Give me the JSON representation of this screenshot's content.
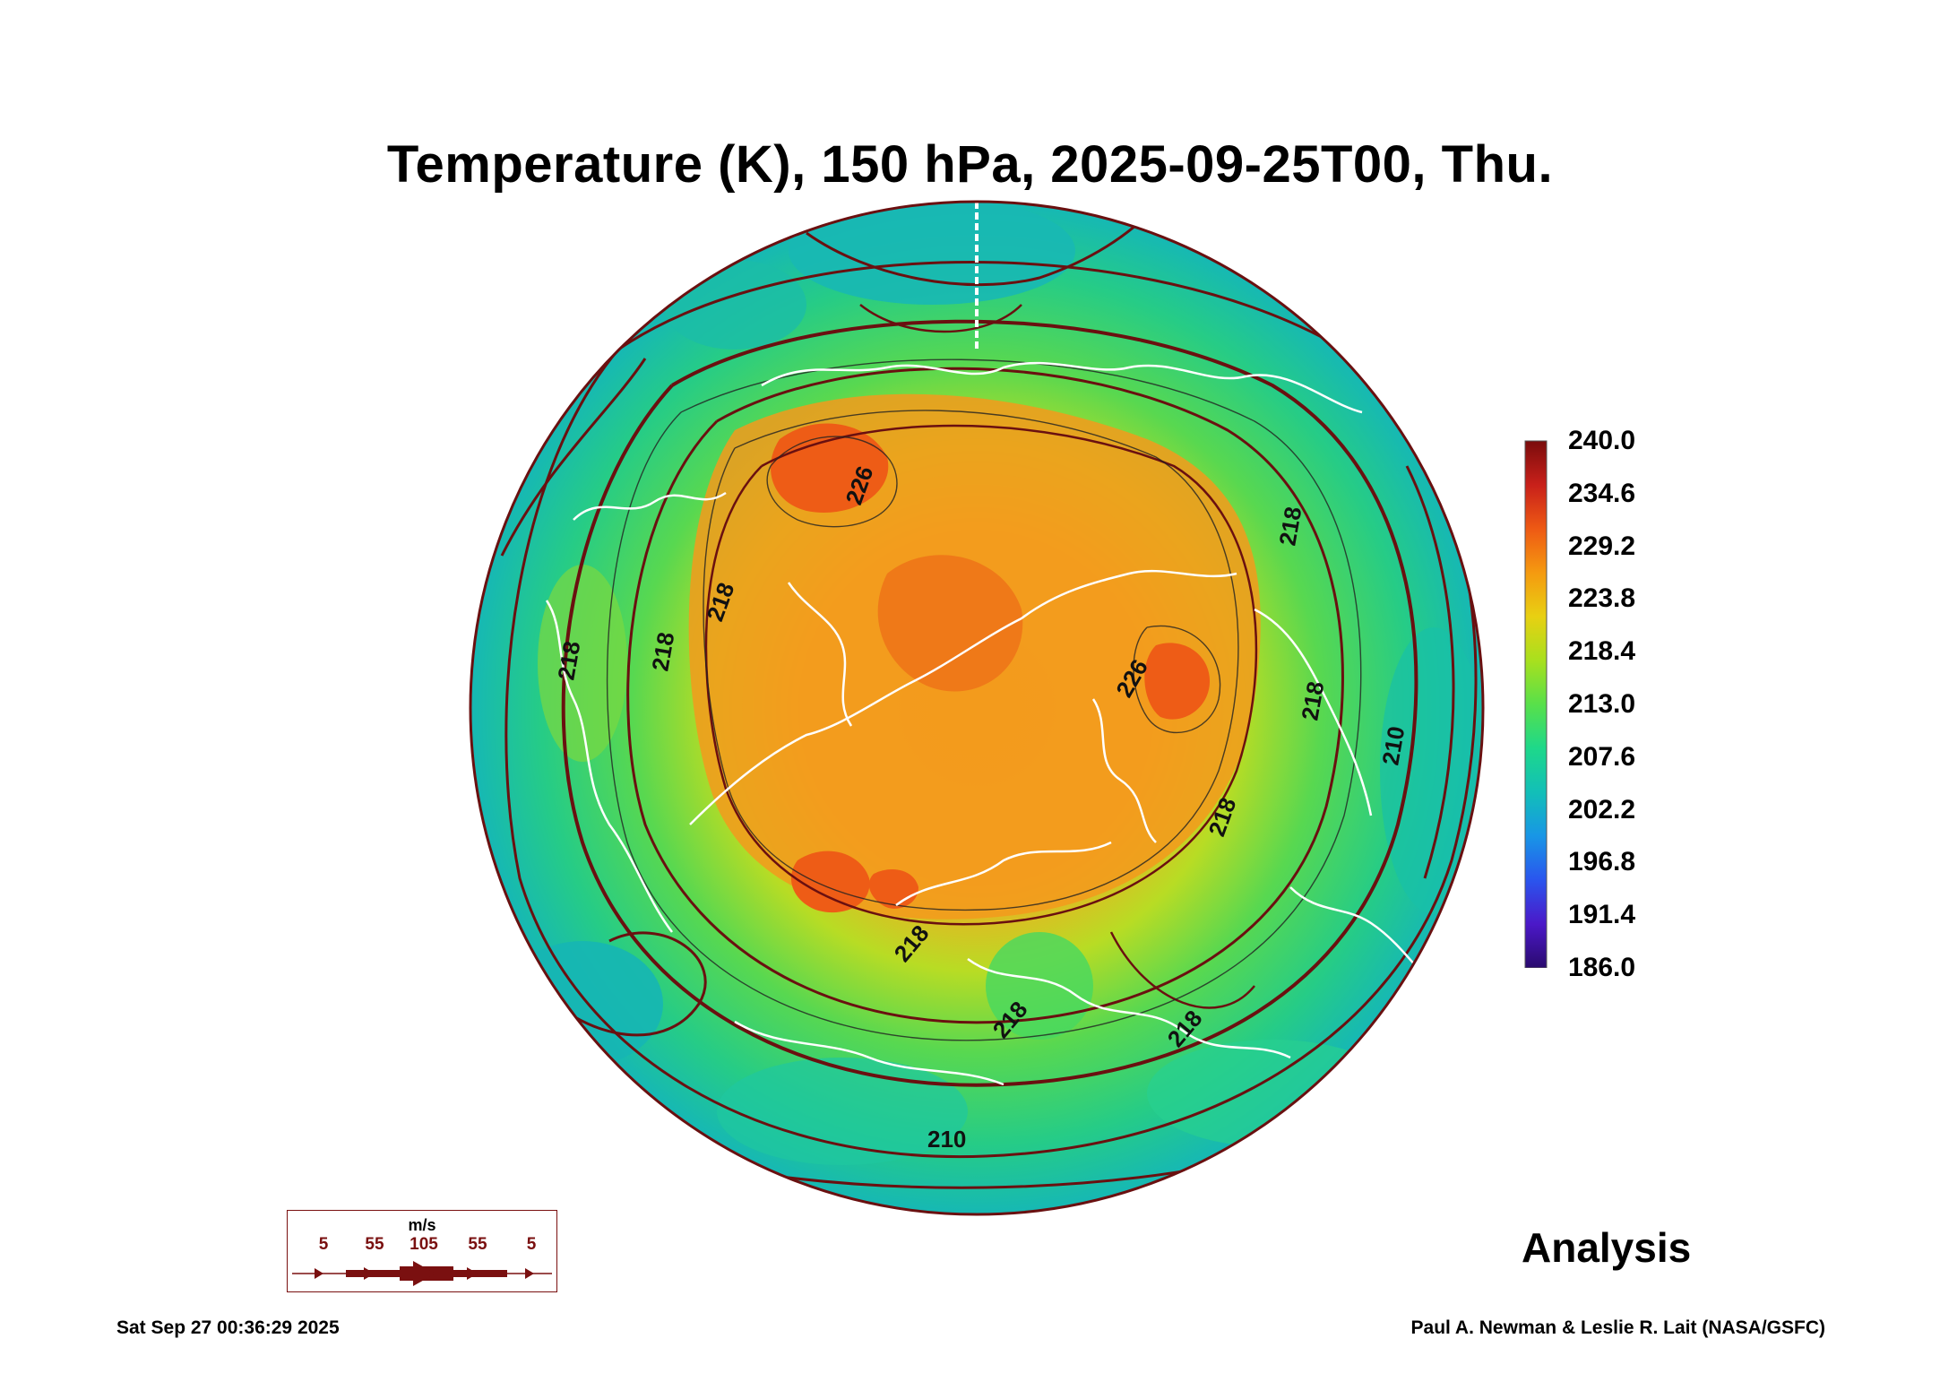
{
  "title": "Temperature (K), 150 hPa, 2025-09-25T00, Thu.",
  "colorbar": {
    "labels": [
      "240.0",
      "234.6",
      "229.2",
      "223.8",
      "218.4",
      "213.0",
      "207.6",
      "202.2",
      "196.8",
      "191.4",
      "186.0"
    ],
    "min": 186.0,
    "max": 240.0,
    "colors": [
      "#2a0a6e",
      "#4b18c8",
      "#2a55ee",
      "#1896e6",
      "#12bfb8",
      "#1ed88a",
      "#58e04a",
      "#a8e01e",
      "#e8d012",
      "#f59a10",
      "#ee5a14",
      "#c8201a",
      "#7a0c0c"
    ]
  },
  "contour_labels": [
    "226",
    "226",
    "218",
    "218",
    "218",
    "218",
    "218",
    "218",
    "218",
    "218",
    "218",
    "210",
    "210"
  ],
  "wind_legend": {
    "unit": "m/s",
    "speeds": [
      "5",
      "55",
      "105",
      "55",
      "5"
    ]
  },
  "badge": "Analysis",
  "timestamp": "Sat Sep 27 00:36:29 2025",
  "credit": "Paul A. Newman & Leslie R. Lait (NASA/GSFC)",
  "map_colors": {
    "cold_edge": "#18c0c0",
    "mid": "#5ad850",
    "warm": "#f5a020",
    "hot": "#ee6018",
    "streamline": "#6a1010",
    "coast": "#ffffff"
  }
}
